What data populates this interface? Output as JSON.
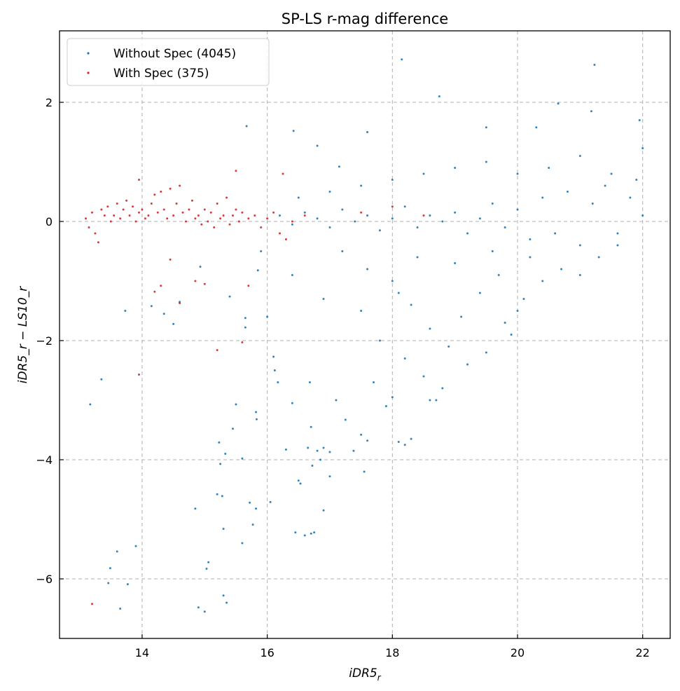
{
  "chart_data": {
    "type": "scatter",
    "title": "SP-LS r-mag difference",
    "xlabel": "iDR5",
    "xlabel_sub": "r",
    "ylabel": "iDR5_r − LS10_r",
    "xlim": [
      12.68,
      22.44
    ],
    "ylim": [
      -7.0,
      3.2
    ],
    "xticks": [
      14,
      16,
      18,
      20,
      22
    ],
    "xtick_labels": [
      "14",
      "16",
      "18",
      "20",
      "22"
    ],
    "yticks": [
      2,
      0,
      -2,
      -4,
      -6
    ],
    "ytick_labels": [
      "2",
      "0",
      "−2",
      "−4",
      "−6"
    ],
    "grid": true,
    "legend_placement": "upper-left",
    "series": [
      {
        "name": "Without Spec (4045)",
        "color": "#1f77b4",
        "points": [
          [
            13.17,
            -3.07
          ],
          [
            13.35,
            -2.65
          ],
          [
            13.46,
            -6.07
          ],
          [
            13.49,
            -5.82
          ],
          [
            13.6,
            -5.54
          ],
          [
            13.65,
            -6.5
          ],
          [
            13.73,
            -1.5
          ],
          [
            13.77,
            -6.09
          ],
          [
            13.9,
            -5.45
          ],
          [
            14.15,
            -1.42
          ],
          [
            14.35,
            -1.55
          ],
          [
            14.5,
            -1.72
          ],
          [
            14.6,
            -1.35
          ],
          [
            14.85,
            -4.82
          ],
          [
            14.9,
            -6.48
          ],
          [
            14.93,
            -0.76
          ],
          [
            15.0,
            -6.55
          ],
          [
            15.03,
            -5.83
          ],
          [
            15.06,
            -5.72
          ],
          [
            15.2,
            -4.58
          ],
          [
            15.23,
            -3.71
          ],
          [
            15.25,
            -4.07
          ],
          [
            15.28,
            -4.61
          ],
          [
            15.3,
            -5.16
          ],
          [
            15.3,
            -6.28
          ],
          [
            15.35,
            -6.4
          ],
          [
            15.33,
            -3.9
          ],
          [
            15.4,
            -1.26
          ],
          [
            15.45,
            -3.48
          ],
          [
            15.5,
            -3.07
          ],
          [
            15.6,
            -5.4
          ],
          [
            15.6,
            -3.98
          ],
          [
            15.65,
            -1.62
          ],
          [
            15.65,
            -1.78
          ],
          [
            15.72,
            -4.72
          ],
          [
            15.77,
            -5.09
          ],
          [
            15.82,
            -4.82
          ],
          [
            15.82,
            -3.2
          ],
          [
            15.83,
            -3.32
          ],
          [
            15.85,
            -0.82
          ],
          [
            16.05,
            -4.71
          ],
          [
            16.1,
            -2.27
          ],
          [
            16.12,
            -2.5
          ],
          [
            16.17,
            -2.7
          ],
          [
            16.3,
            -3.83
          ],
          [
            16.4,
            -3.05
          ],
          [
            16.45,
            -5.22
          ],
          [
            16.5,
            -4.35
          ],
          [
            16.53,
            -4.4
          ],
          [
            16.6,
            -5.27
          ],
          [
            16.65,
            -3.8
          ],
          [
            16.7,
            -5.24
          ],
          [
            16.75,
            -5.22
          ],
          [
            16.68,
            -2.7
          ],
          [
            16.7,
            -3.45
          ],
          [
            16.72,
            -4.1
          ],
          [
            16.8,
            -3.85
          ],
          [
            16.85,
            -4.0
          ],
          [
            16.9,
            -4.85
          ],
          [
            16.9,
            -3.8
          ],
          [
            17.0,
            -3.87
          ],
          [
            17.0,
            -4.28
          ],
          [
            17.1,
            -3.0
          ],
          [
            17.25,
            -3.33
          ],
          [
            17.38,
            -3.85
          ],
          [
            17.5,
            -3.58
          ],
          [
            17.55,
            -4.2
          ],
          [
            17.6,
            -3.68
          ],
          [
            17.9,
            -3.1
          ],
          [
            18.0,
            -2.95
          ],
          [
            18.1,
            -3.7
          ],
          [
            18.2,
            -3.75
          ],
          [
            18.3,
            -3.65
          ],
          [
            18.6,
            -3.0
          ],
          [
            18.7,
            -3.0
          ],
          [
            15.67,
            1.6
          ],
          [
            16.42,
            1.52
          ],
          [
            17.15,
            0.92
          ],
          [
            17.6,
            1.5
          ],
          [
            18.15,
            2.72
          ],
          [
            18.75,
            2.1
          ],
          [
            20.65,
            1.98
          ],
          [
            21.18,
            1.85
          ],
          [
            21.23,
            2.63
          ],
          [
            21.95,
            1.7
          ],
          [
            22.0,
            1.23
          ],
          [
            16.8,
            1.27
          ],
          [
            19.5,
            1.58
          ],
          [
            20.3,
            1.58
          ],
          [
            16.2,
            0.1
          ],
          [
            16.4,
            -0.05
          ],
          [
            16.6,
            0.15
          ],
          [
            16.8,
            0.05
          ],
          [
            17.0,
            -0.1
          ],
          [
            17.2,
            0.2
          ],
          [
            17.4,
            0.0
          ],
          [
            17.6,
            0.1
          ],
          [
            17.8,
            -0.15
          ],
          [
            18.0,
            0.05
          ],
          [
            18.2,
            0.25
          ],
          [
            18.4,
            -0.1
          ],
          [
            18.6,
            0.1
          ],
          [
            18.8,
            0.0
          ],
          [
            19.0,
            0.15
          ],
          [
            19.2,
            -0.2
          ],
          [
            19.4,
            0.05
          ],
          [
            19.6,
            0.3
          ],
          [
            19.8,
            -0.1
          ],
          [
            20.0,
            0.2
          ],
          [
            20.2,
            -0.3
          ],
          [
            20.4,
            0.4
          ],
          [
            20.6,
            -0.2
          ],
          [
            20.8,
            0.5
          ],
          [
            21.0,
            -0.4
          ],
          [
            21.2,
            0.3
          ],
          [
            21.4,
            0.6
          ],
          [
            21.6,
            -0.2
          ],
          [
            21.8,
            0.4
          ],
          [
            22.0,
            0.1
          ],
          [
            16.5,
            0.4
          ],
          [
            17.0,
            0.5
          ],
          [
            17.5,
            0.6
          ],
          [
            18.0,
            0.7
          ],
          [
            18.5,
            0.8
          ],
          [
            19.0,
            0.9
          ],
          [
            19.5,
            1.0
          ],
          [
            20.0,
            0.8
          ],
          [
            20.5,
            0.9
          ],
          [
            21.0,
            1.1
          ],
          [
            21.5,
            0.8
          ],
          [
            21.9,
            0.7
          ],
          [
            17.2,
            -0.5
          ],
          [
            17.6,
            -0.8
          ],
          [
            18.0,
            -1.0
          ],
          [
            18.3,
            -1.4
          ],
          [
            18.6,
            -1.8
          ],
          [
            18.9,
            -2.1
          ],
          [
            19.2,
            -2.4
          ],
          [
            19.5,
            -2.2
          ],
          [
            19.8,
            -1.7
          ],
          [
            20.1,
            -1.3
          ],
          [
            20.4,
            -1.0
          ],
          [
            20.7,
            -0.8
          ],
          [
            21.0,
            -0.9
          ],
          [
            21.3,
            -0.6
          ],
          [
            21.6,
            -0.4
          ],
          [
            17.8,
            -2.0
          ],
          [
            18.2,
            -2.3
          ],
          [
            18.5,
            -2.6
          ],
          [
            18.8,
            -2.8
          ],
          [
            19.1,
            -1.6
          ],
          [
            19.4,
            -1.2
          ],
          [
            19.7,
            -0.9
          ],
          [
            18.1,
            -1.2
          ],
          [
            18.4,
            -0.6
          ],
          [
            19.0,
            -0.7
          ],
          [
            19.6,
            -0.5
          ],
          [
            20.2,
            -0.6
          ],
          [
            17.5,
            -1.5
          ],
          [
            16.9,
            -1.3
          ],
          [
            16.4,
            -0.9
          ],
          [
            16.0,
            -1.6
          ],
          [
            15.9,
            -0.5
          ],
          [
            17.7,
            -2.7
          ],
          [
            19.9,
            -1.9
          ],
          [
            20.0,
            -1.5
          ]
        ]
      },
      {
        "name": "With Spec (375)",
        "color": "#d62728",
        "points": [
          [
            13.1,
            0.05
          ],
          [
            13.15,
            -0.1
          ],
          [
            13.2,
            0.15
          ],
          [
            13.25,
            -0.2
          ],
          [
            13.3,
            -0.35
          ],
          [
            13.35,
            0.2
          ],
          [
            13.4,
            0.1
          ],
          [
            13.45,
            0.25
          ],
          [
            13.5,
            0.0
          ],
          [
            13.55,
            0.1
          ],
          [
            13.6,
            0.3
          ],
          [
            13.65,
            0.05
          ],
          [
            13.7,
            0.2
          ],
          [
            13.75,
            0.35
          ],
          [
            13.8,
            0.1
          ],
          [
            13.85,
            0.25
          ],
          [
            13.9,
            0.0
          ],
          [
            13.95,
            0.15
          ],
          [
            14.0,
            0.2
          ],
          [
            14.05,
            0.05
          ],
          [
            14.1,
            0.1
          ],
          [
            14.15,
            0.3
          ],
          [
            14.2,
            0.45
          ],
          [
            14.25,
            0.15
          ],
          [
            14.3,
            0.5
          ],
          [
            14.35,
            0.2
          ],
          [
            14.4,
            0.05
          ],
          [
            14.45,
            0.55
          ],
          [
            14.5,
            0.1
          ],
          [
            14.55,
            0.3
          ],
          [
            14.65,
            0.15
          ],
          [
            14.7,
            0.0
          ],
          [
            14.75,
            0.2
          ],
          [
            14.8,
            0.35
          ],
          [
            14.85,
            0.05
          ],
          [
            14.9,
            0.1
          ],
          [
            14.95,
            -0.05
          ],
          [
            15.0,
            0.2
          ],
          [
            15.05,
            0.0
          ],
          [
            15.1,
            0.15
          ],
          [
            15.15,
            -0.1
          ],
          [
            15.2,
            0.3
          ],
          [
            15.25,
            0.05
          ],
          [
            15.3,
            0.1
          ],
          [
            15.35,
            0.4
          ],
          [
            15.4,
            -0.05
          ],
          [
            15.45,
            0.1
          ],
          [
            15.5,
            0.2
          ],
          [
            15.55,
            0.0
          ],
          [
            15.6,
            0.15
          ],
          [
            15.7,
            0.05
          ],
          [
            15.8,
            0.1
          ],
          [
            15.9,
            -0.1
          ],
          [
            16.0,
            0.05
          ],
          [
            16.1,
            0.15
          ],
          [
            16.2,
            -0.2
          ],
          [
            16.3,
            -0.3
          ],
          [
            16.4,
            0.0
          ],
          [
            16.6,
            0.1
          ],
          [
            17.5,
            0.15
          ],
          [
            18.0,
            0.25
          ],
          [
            18.5,
            0.1
          ],
          [
            13.2,
            -6.42
          ],
          [
            13.95,
            -2.57
          ],
          [
            15.2,
            -2.16
          ],
          [
            15.6,
            -2.03
          ],
          [
            14.45,
            -0.64
          ],
          [
            14.2,
            -1.18
          ],
          [
            14.3,
            -1.08
          ],
          [
            14.6,
            -1.37
          ],
          [
            14.85,
            -1.0
          ],
          [
            15.0,
            -1.05
          ],
          [
            15.7,
            -1.08
          ],
          [
            13.95,
            0.7
          ],
          [
            15.5,
            0.85
          ],
          [
            16.25,
            0.8
          ],
          [
            14.6,
            0.6
          ]
        ]
      }
    ]
  }
}
